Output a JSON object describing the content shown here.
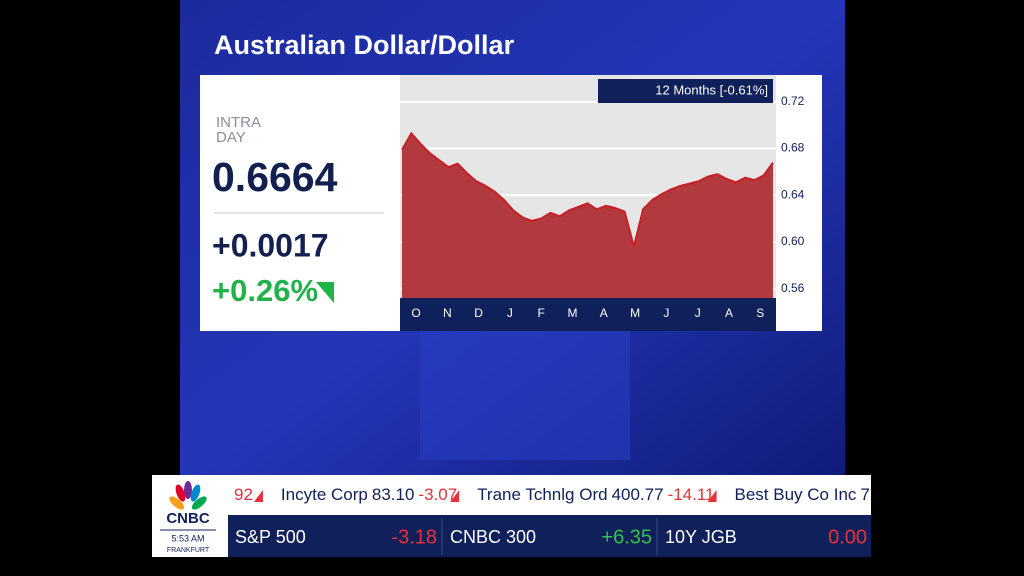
{
  "chart_data": {
    "type": "area",
    "title": "Australian Dollar/Dollar",
    "period_label": "12 Months [-0.61%]",
    "x_labels": [
      "O",
      "N",
      "D",
      "J",
      "F",
      "M",
      "A",
      "M",
      "J",
      "J",
      "A",
      "S"
    ],
    "values": [
      0.679,
      0.693,
      0.684,
      0.676,
      0.67,
      0.664,
      0.667,
      0.659,
      0.652,
      0.648,
      0.643,
      0.636,
      0.627,
      0.621,
      0.618,
      0.62,
      0.625,
      0.622,
      0.627,
      0.63,
      0.633,
      0.628,
      0.631,
      0.629,
      0.626,
      0.596,
      0.628,
      0.636,
      0.641,
      0.645,
      0.648,
      0.65,
      0.652,
      0.656,
      0.658,
      0.654,
      0.651,
      0.655,
      0.653,
      0.657,
      0.668
    ],
    "color": "#b23a3e",
    "line_color": "#c81e24",
    "ylim": [
      0.552,
      0.743
    ],
    "yticks": [
      0.56,
      {
        "value": 0.6,
        "label": "0.60"
      },
      0.64,
      0.68,
      0.72
    ],
    "grid": true
  },
  "quote": {
    "label_lines": [
      "INTRA",
      "DAY"
    ],
    "price": "0.6664",
    "change": "+0.0017",
    "change_pct": "+0.26%"
  },
  "ticker": {
    "top": [
      {
        "name": "",
        "price": "",
        "change": "92"
      },
      {
        "name": "Incyte Corp",
        "price": "83.10",
        "change": "-3.07"
      },
      {
        "name": "Trane Tchnlg Ord",
        "price": "400.77",
        "change": "-14.11"
      },
      {
        "name": "Best Buy Co Inc",
        "price": "7",
        "change": ""
      }
    ],
    "bottom": [
      {
        "name": "S&P 500",
        "change": "-3.18",
        "color": "#e8303a"
      },
      {
        "name": "CNBC 300",
        "change": "+6.35",
        "color": "#2fc24a"
      },
      {
        "name": "10Y JGB",
        "change": "0.00",
        "color": "#e8303a"
      }
    ]
  },
  "logo": {
    "brand": "CNBC",
    "time": "5:53 AM",
    "city": "FRANKFURT"
  }
}
